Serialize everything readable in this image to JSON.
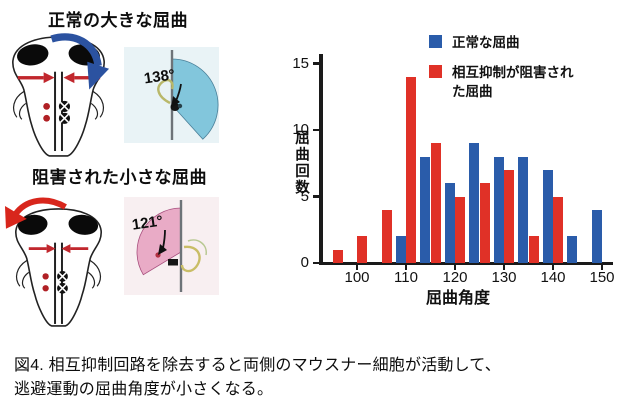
{
  "figure": {
    "panels": {
      "normal": {
        "title": "正常の大きな屈曲",
        "angle_label": "138°"
      },
      "inhibited": {
        "title": "阻害された小さな屈曲",
        "angle_label": "121°"
      }
    },
    "colors": {
      "normal_blue": "#2a5caa",
      "inhibited_red": "#e03127",
      "fan_cyan": "#82c6dc",
      "fan_pink": "#e9abc6",
      "arrow_blue": "#2b52a0",
      "arrow_red": "#d8261c",
      "neuron_red": "#b02025"
    },
    "caption": {
      "line1": "図4. 相互抑制回路を除去すると両側のマウスナー細胞が活動して、",
      "line2": "逃避運動の屈曲角度が小さくなる。"
    }
  },
  "chart_data": {
    "type": "bar",
    "title": "",
    "xlabel": "屈曲角度",
    "ylabel": "屈曲回数",
    "categories": [
      95,
      100,
      105,
      110,
      115,
      120,
      125,
      130,
      135,
      140,
      145,
      150
    ],
    "series": [
      {
        "name": "正常な屈曲",
        "color": "#2a5caa",
        "values": [
          0,
          0,
          0,
          2,
          8,
          6,
          9,
          8,
          8,
          7,
          2,
          4
        ]
      },
      {
        "name": "相互抑制が阻害された屈曲",
        "color": "#e03127",
        "values": [
          1,
          2,
          4,
          14,
          9,
          5,
          6,
          7,
          2,
          5,
          0,
          0
        ]
      }
    ],
    "y_ticks": [
      0,
      5,
      10,
      15
    ],
    "ylim": [
      0,
      15
    ],
    "x_tick_labels": [
      100,
      110,
      120,
      130,
      140,
      150
    ],
    "grid": false,
    "legend_position": "upper right"
  }
}
